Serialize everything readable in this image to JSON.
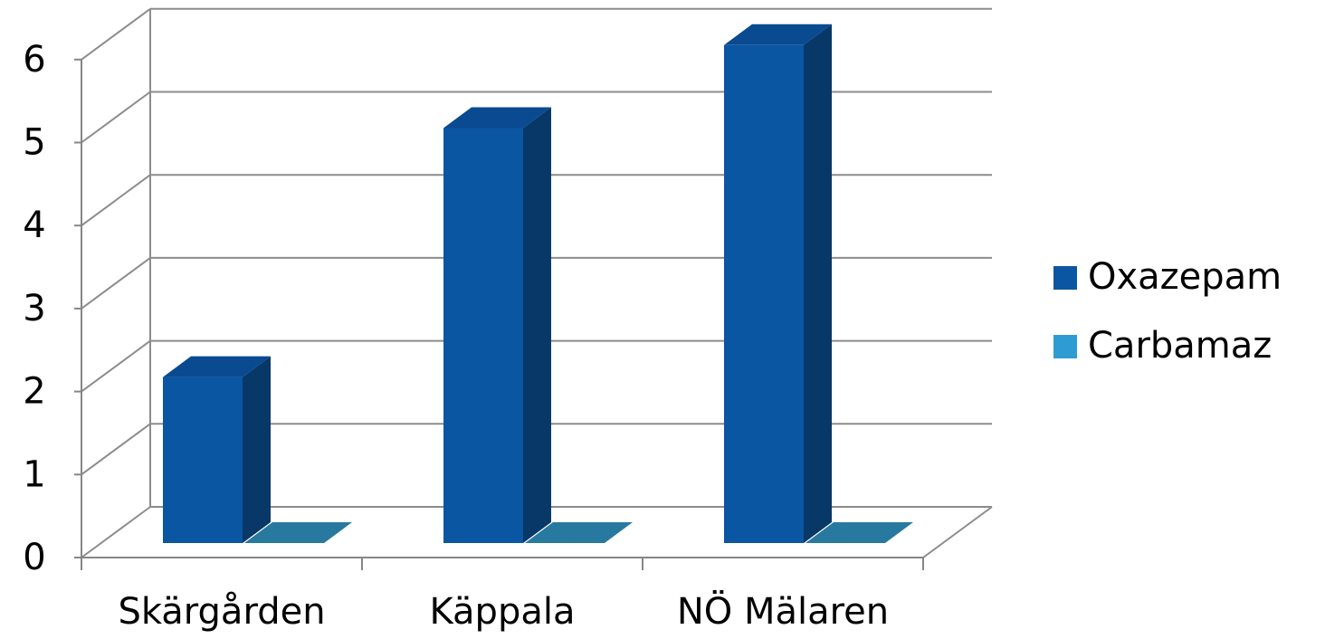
{
  "chart_data": {
    "type": "bar",
    "categories": [
      "Skärgården",
      "Käppala",
      "NÖ Mälaren"
    ],
    "series": [
      {
        "name": "Oxazepam",
        "values": [
          2,
          5,
          6
        ],
        "color": "#0b56a3",
        "top_color": "#0a4a90",
        "side_color": "#083867"
      },
      {
        "name": "Carbamaz",
        "values": [
          0,
          0,
          0
        ],
        "color": "#2f9bd3",
        "top_color": "#28799f",
        "side_color": "#1f6182"
      }
    ],
    "ylim": [
      0,
      6
    ],
    "yticks": [
      "0",
      "1",
      "2",
      "3",
      "4",
      "5",
      "6"
    ],
    "grid": true,
    "legend": "right"
  }
}
